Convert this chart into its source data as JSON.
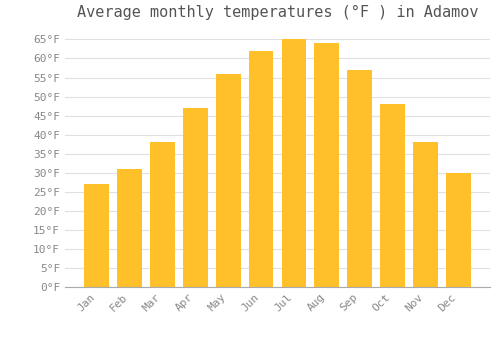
{
  "title": "Average monthly temperatures (°F ) in Adamov",
  "months": [
    "Jan",
    "Feb",
    "Mar",
    "Apr",
    "May",
    "Jun",
    "Jul",
    "Aug",
    "Sep",
    "Oct",
    "Nov",
    "Dec"
  ],
  "values": [
    27,
    31,
    38,
    47,
    56,
    62,
    65,
    64,
    57,
    48,
    38,
    30
  ],
  "bar_color": "#FFC02A",
  "bar_edge_color": "#FFB347",
  "background_color": "#ffffff",
  "grid_color": "#e0e0e0",
  "text_color": "#888888",
  "title_color": "#555555",
  "ylim": [
    0,
    68
  ],
  "yticks": [
    0,
    5,
    10,
    15,
    20,
    25,
    30,
    35,
    40,
    45,
    50,
    55,
    60,
    65
  ],
  "title_fontsize": 11,
  "tick_fontsize": 8,
  "font_family": "monospace"
}
